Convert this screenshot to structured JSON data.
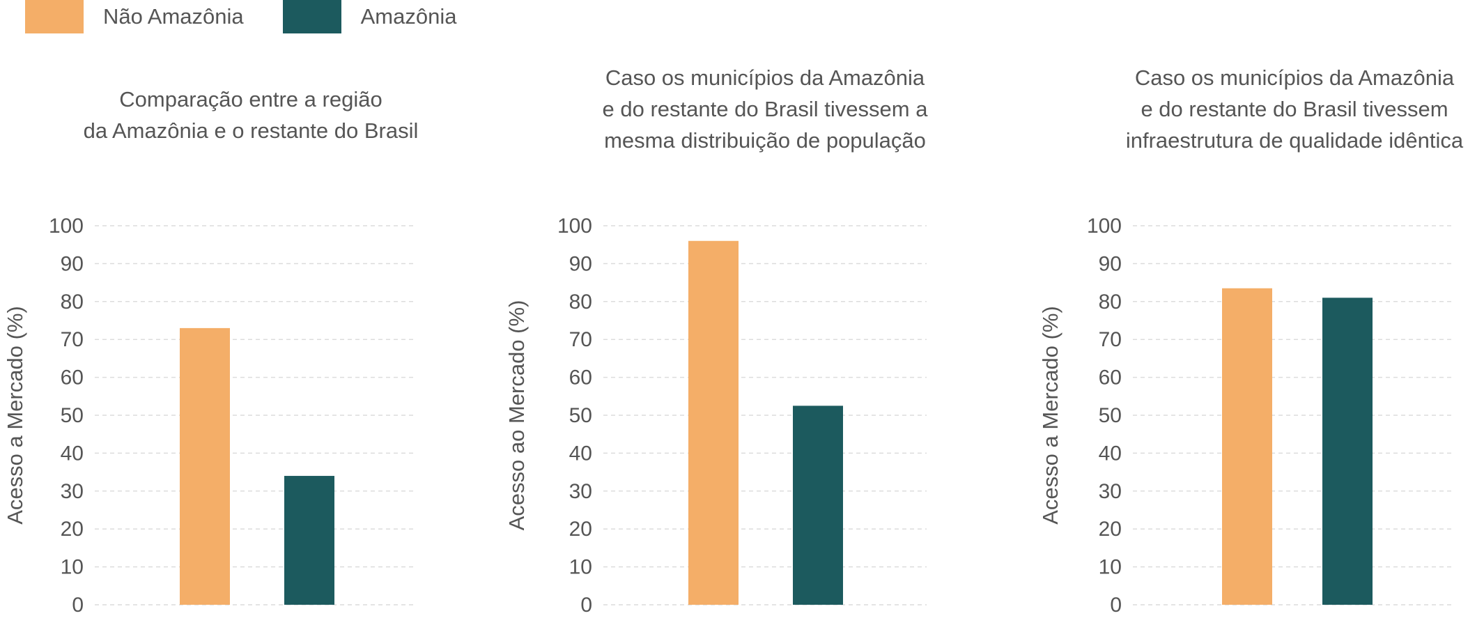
{
  "legend": [
    {
      "label": "Não Amazônia",
      "color": "#F4AE68"
    },
    {
      "label": "Amazônia",
      "color": "#1C5A5E"
    }
  ],
  "chart_data": [
    {
      "type": "bar",
      "title_lines": [
        "Comparação entre a região",
        "da Amazônia e o restante do Brasil"
      ],
      "ylabel": "Acesso a Mercado (%)",
      "ylim": [
        0,
        100
      ],
      "yticks": [
        "0",
        "10",
        "20",
        "30",
        "40",
        "50",
        "60",
        "70",
        "80",
        "90",
        "100"
      ],
      "grid": true,
      "series": [
        {
          "name": "Não Amazônia",
          "values": [
            73
          ]
        },
        {
          "name": "Amazônia",
          "values": [
            34
          ]
        }
      ]
    },
    {
      "type": "bar",
      "title_lines": [
        "Caso os municípios da Amazônia",
        "e do restante do Brasil tivessem a",
        "mesma distribuição de população"
      ],
      "ylabel": "Acesso ao Mercado (%)",
      "ylim": [
        0,
        100
      ],
      "yticks": [
        "0",
        "10",
        "20",
        "30",
        "40",
        "50",
        "60",
        "70",
        "80",
        "90",
        "100"
      ],
      "grid": true,
      "series": [
        {
          "name": "Não Amazônia",
          "values": [
            96
          ]
        },
        {
          "name": "Amazônia",
          "values": [
            52.5
          ]
        }
      ]
    },
    {
      "type": "bar",
      "title_lines": [
        "Caso os municípios da Amazônia",
        "e do restante do Brasil tivessem",
        "infraestrutura de qualidade idêntica"
      ],
      "ylabel": "Acesso a Mercado (%)",
      "ylim": [
        0,
        100
      ],
      "yticks": [
        "0",
        "10",
        "20",
        "30",
        "40",
        "50",
        "60",
        "70",
        "80",
        "90",
        "100"
      ],
      "grid": true,
      "series": [
        {
          "name": "Não Amazônia",
          "values": [
            83.5
          ]
        },
        {
          "name": "Amazônia",
          "values": [
            81
          ]
        }
      ]
    }
  ]
}
